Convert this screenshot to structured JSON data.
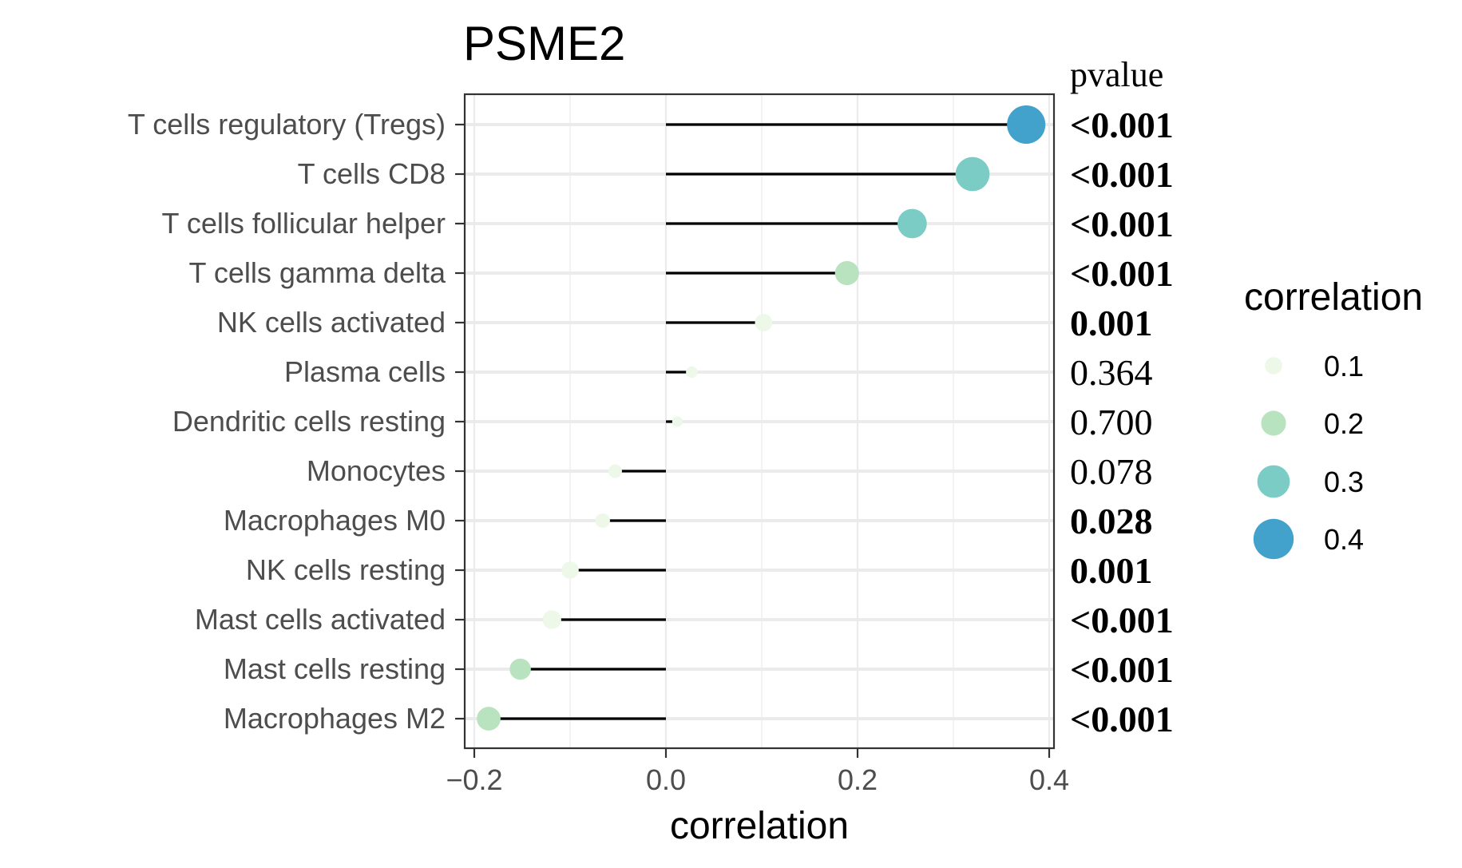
{
  "chart_data": {
    "type": "lollipop",
    "title": "PSME2",
    "xlabel": "correlation",
    "ylabel": "",
    "xlim": [
      -0.21,
      0.405
    ],
    "x_ticks": [
      -0.2,
      0.0,
      0.2,
      0.4
    ],
    "x_tick_labels": [
      "−0.2",
      "0.0",
      "0.2",
      "0.4"
    ],
    "grid": true,
    "pvalue_header": "pvalue",
    "categories": [
      "T cells regulatory (Tregs)",
      "T cells CD8",
      "T cells follicular helper",
      "T cells gamma delta",
      "NK cells activated",
      "Plasma cells",
      "Dendritic cells resting",
      "Monocytes",
      "Macrophages M0",
      "NK cells resting",
      "Mast cells activated",
      "Mast cells resting",
      "Macrophages M2"
    ],
    "values": [
      0.376,
      0.32,
      0.257,
      0.189,
      0.102,
      0.027,
      0.012,
      -0.053,
      -0.066,
      -0.1,
      -0.119,
      -0.152,
      -0.185
    ],
    "pvalues": [
      "<0.001",
      "<0.001",
      "<0.001",
      "<0.001",
      "0.001",
      "0.364",
      "0.700",
      "0.078",
      "0.028",
      "0.001",
      "<0.001",
      "<0.001",
      "<0.001"
    ],
    "pvalue_bold": [
      true,
      true,
      true,
      true,
      true,
      false,
      false,
      false,
      true,
      true,
      true,
      true,
      true
    ],
    "legend": {
      "title": "correlation",
      "position": "right",
      "items": [
        {
          "label": "0.1",
          "value": 0.1,
          "color": "#edf8e9"
        },
        {
          "label": "0.2",
          "value": 0.2,
          "color": "#b8e3be"
        },
        {
          "label": "0.3",
          "value": 0.3,
          "color": "#7accc4"
        },
        {
          "label": "0.4",
          "value": 0.4,
          "color": "#42a2cb"
        }
      ]
    }
  }
}
